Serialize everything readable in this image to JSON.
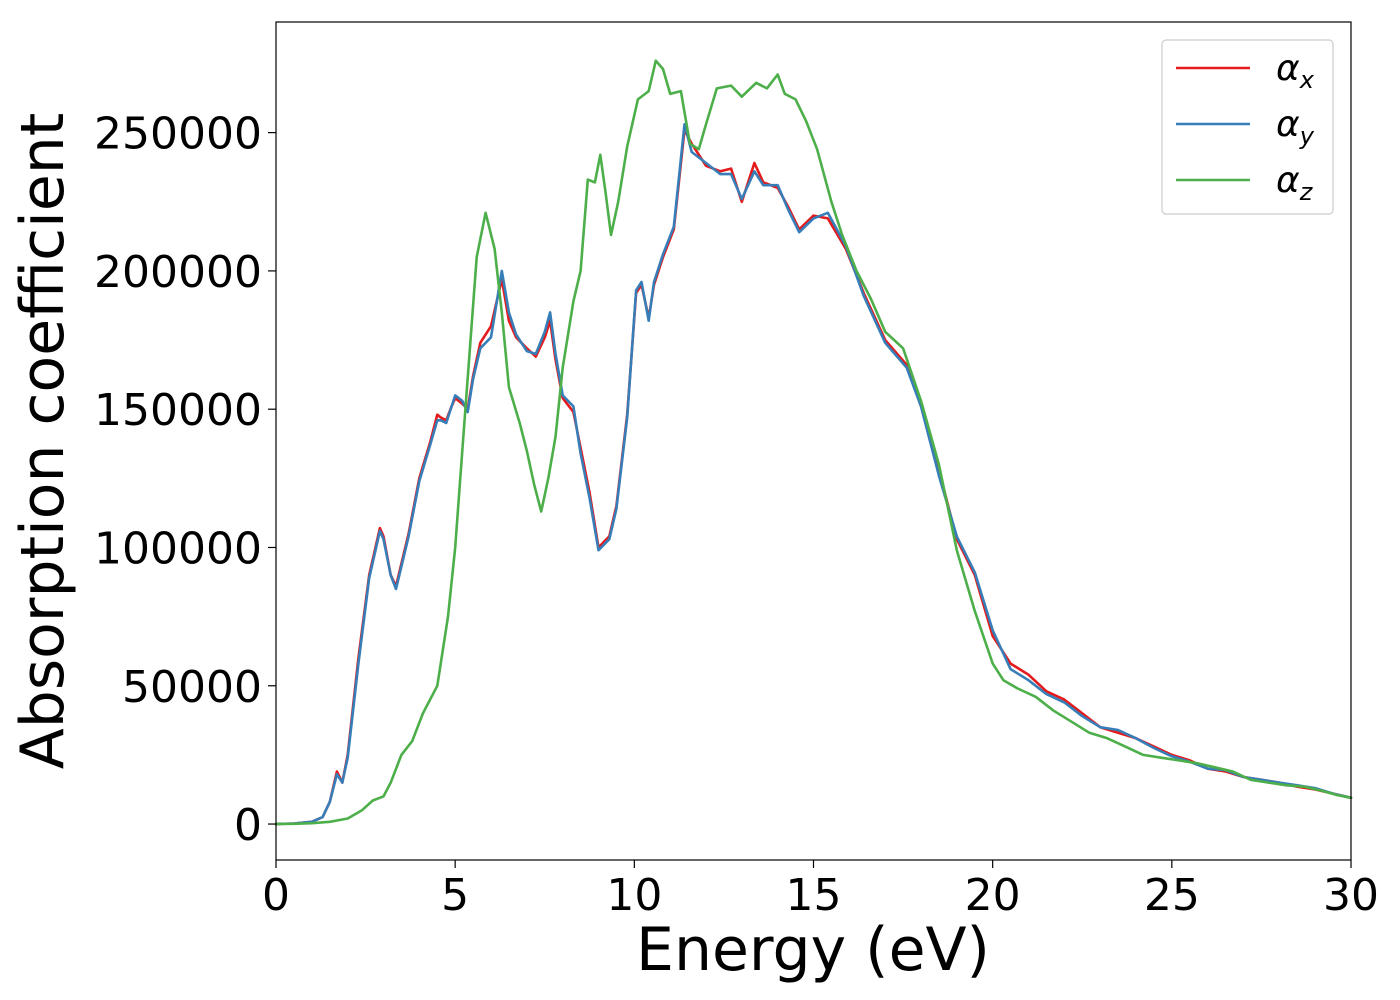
{
  "chart_data": {
    "type": "line",
    "xlabel": "Energy (eV)",
    "ylabel": "Absorption coefficient",
    "xlim": [
      0,
      30
    ],
    "ylim": [
      -13000,
      290000
    ],
    "xticks": [
      0,
      5,
      10,
      15,
      20,
      25,
      30
    ],
    "xtick_labels": [
      "0",
      "5",
      "10",
      "15",
      "20",
      "25",
      "30"
    ],
    "yticks": [
      0,
      50000,
      100000,
      150000,
      200000,
      250000
    ],
    "ytick_labels": [
      "0",
      "50000",
      "100000",
      "150000",
      "200000",
      "250000"
    ],
    "grid": false,
    "legend_position": "top-right",
    "series": [
      {
        "name": "α",
        "subscript": "x",
        "color": "#e41a1c",
        "x": [
          0,
          0.5,
          1.0,
          1.3,
          1.5,
          1.7,
          1.85,
          2.0,
          2.3,
          2.6,
          2.9,
          3.0,
          3.2,
          3.35,
          3.7,
          4.0,
          4.3,
          4.5,
          4.6,
          4.75,
          4.9,
          5.0,
          5.2,
          5.35,
          5.5,
          5.7,
          6.0,
          6.3,
          6.5,
          6.7,
          7.0,
          7.25,
          7.5,
          7.65,
          7.8,
          8.0,
          8.3,
          8.5,
          8.75,
          9.0,
          9.15,
          9.3,
          9.5,
          9.8,
          10.05,
          10.2,
          10.4,
          10.55,
          10.8,
          11.1,
          11.4,
          11.6,
          12.0,
          12.4,
          12.7,
          13.0,
          13.35,
          13.6,
          14.0,
          14.3,
          14.6,
          15.0,
          15.4,
          15.9,
          16.4,
          17.0,
          17.6,
          18.0,
          18.5,
          19.0,
          19.5,
          20.0,
          20.5,
          21.0,
          21.5,
          22.0,
          22.5,
          23.0,
          23.5,
          24.0,
          24.5,
          25.0,
          25.5,
          26.0,
          26.5,
          27.0,
          27.5,
          28.0,
          28.5,
          29.0,
          29.5,
          30.0
        ],
        "y": [
          0,
          200,
          800,
          2500,
          8000,
          19000,
          15000,
          25000,
          60000,
          90000,
          107000,
          104000,
          90000,
          86000,
          105000,
          125000,
          138000,
          148000,
          147000,
          146000,
          151000,
          154000,
          152000,
          150000,
          162000,
          174000,
          180000,
          197000,
          182000,
          176000,
          172000,
          169000,
          176000,
          182000,
          168000,
          154000,
          149000,
          136000,
          120000,
          100000,
          102000,
          104000,
          115000,
          148000,
          192000,
          195000,
          183000,
          195000,
          205000,
          215000,
          251000,
          246000,
          238000,
          236000,
          237000,
          225000,
          239000,
          232000,
          230000,
          223000,
          215000,
          220000,
          219000,
          208000,
          192000,
          175000,
          166000,
          152000,
          128000,
          103000,
          90000,
          68000,
          58000,
          54000,
          48000,
          45000,
          40000,
          35000,
          33000,
          31000,
          28000,
          25000,
          23000,
          20000,
          19000,
          17000,
          16000,
          15000,
          13500,
          12500,
          11000,
          9500
        ]
      },
      {
        "name": "α",
        "subscript": "y",
        "color": "#377eb8",
        "x": [
          0,
          0.5,
          1.0,
          1.3,
          1.5,
          1.7,
          1.85,
          2.0,
          2.3,
          2.6,
          2.9,
          3.0,
          3.2,
          3.35,
          3.7,
          4.0,
          4.3,
          4.5,
          4.6,
          4.75,
          4.9,
          5.0,
          5.2,
          5.35,
          5.5,
          5.7,
          6.0,
          6.3,
          6.5,
          6.7,
          7.0,
          7.25,
          7.5,
          7.65,
          7.8,
          8.0,
          8.3,
          8.5,
          8.75,
          9.0,
          9.15,
          9.3,
          9.5,
          9.8,
          10.05,
          10.2,
          10.4,
          10.55,
          10.8,
          11.1,
          11.4,
          11.6,
          12.0,
          12.4,
          12.7,
          13.0,
          13.35,
          13.6,
          14.0,
          14.3,
          14.6,
          15.0,
          15.4,
          15.9,
          16.4,
          17.0,
          17.6,
          18.0,
          18.5,
          19.0,
          19.5,
          20.0,
          20.5,
          21.0,
          21.5,
          22.0,
          22.5,
          23.0,
          23.5,
          24.0,
          24.5,
          25.0,
          25.5,
          26.0,
          26.5,
          27.0,
          27.5,
          28.0,
          28.5,
          29.0,
          29.5,
          30.0
        ],
        "y": [
          0,
          200,
          800,
          2500,
          8000,
          18000,
          15000,
          24000,
          58000,
          89000,
          106000,
          103000,
          90000,
          85000,
          104000,
          124000,
          137000,
          146000,
          146000,
          145000,
          151000,
          155000,
          153000,
          149000,
          161000,
          172000,
          176000,
          200000,
          185000,
          177000,
          171000,
          170000,
          178000,
          185000,
          170000,
          155000,
          151000,
          134000,
          118000,
          99000,
          101000,
          103000,
          114000,
          147000,
          193000,
          196000,
          182000,
          196000,
          206000,
          216000,
          253000,
          243000,
          239000,
          235000,
          235000,
          226000,
          236000,
          231000,
          231000,
          222000,
          214000,
          219000,
          221000,
          209000,
          191000,
          174000,
          165000,
          151000,
          126000,
          104000,
          91000,
          70000,
          56000,
          52000,
          47000,
          44000,
          39000,
          35000,
          34000,
          31000,
          27500,
          24500,
          22500,
          20000,
          19500,
          17000,
          16000,
          15000,
          14000,
          13000,
          11000,
          9500
        ]
      },
      {
        "name": "α",
        "subscript": "z",
        "color": "#4daf4a",
        "x": [
          0,
          0.5,
          1.0,
          1.5,
          2.0,
          2.4,
          2.7,
          3.0,
          3.2,
          3.5,
          3.8,
          4.1,
          4.5,
          4.8,
          5.0,
          5.2,
          5.4,
          5.6,
          5.85,
          6.1,
          6.3,
          6.5,
          6.8,
          7.0,
          7.2,
          7.4,
          7.6,
          7.8,
          8.0,
          8.3,
          8.5,
          8.7,
          8.9,
          9.05,
          9.2,
          9.35,
          9.55,
          9.8,
          10.1,
          10.4,
          10.6,
          10.8,
          11.0,
          11.3,
          11.55,
          11.8,
          12.0,
          12.3,
          12.7,
          13.0,
          13.4,
          13.7,
          14.0,
          14.2,
          14.5,
          14.8,
          15.1,
          15.5,
          15.8,
          16.2,
          16.6,
          17.0,
          17.5,
          18.0,
          18.5,
          19.0,
          19.5,
          20.0,
          20.3,
          20.7,
          21.2,
          21.7,
          22.2,
          22.7,
          23.2,
          23.7,
          24.2,
          24.7,
          25.2,
          25.7,
          26.2,
          26.7,
          27.2,
          27.7,
          28.2,
          28.7,
          29.2,
          29.6,
          30.0
        ],
        "y": [
          0,
          100,
          300,
          800,
          2000,
          5000,
          8500,
          10000,
          15000,
          25000,
          30000,
          40000,
          50000,
          75000,
          100000,
          135000,
          170000,
          205000,
          221000,
          208000,
          185000,
          158000,
          145000,
          135000,
          123000,
          113000,
          125000,
          140000,
          165000,
          189000,
          200000,
          233000,
          232000,
          242000,
          228000,
          213000,
          225000,
          245000,
          262000,
          265000,
          276000,
          273000,
          264000,
          265000,
          246000,
          244000,
          253000,
          266000,
          267000,
          263000,
          268000,
          266000,
          271000,
          264000,
          262000,
          254000,
          244000,
          225000,
          213000,
          200000,
          190000,
          178000,
          172000,
          153000,
          130000,
          99000,
          77000,
          58000,
          52000,
          49000,
          46000,
          41000,
          37000,
          33000,
          31000,
          28000,
          25000,
          24000,
          23000,
          22000,
          20500,
          19000,
          16000,
          15000,
          14000,
          13500,
          12000,
          10500,
          9500
        ]
      }
    ]
  }
}
